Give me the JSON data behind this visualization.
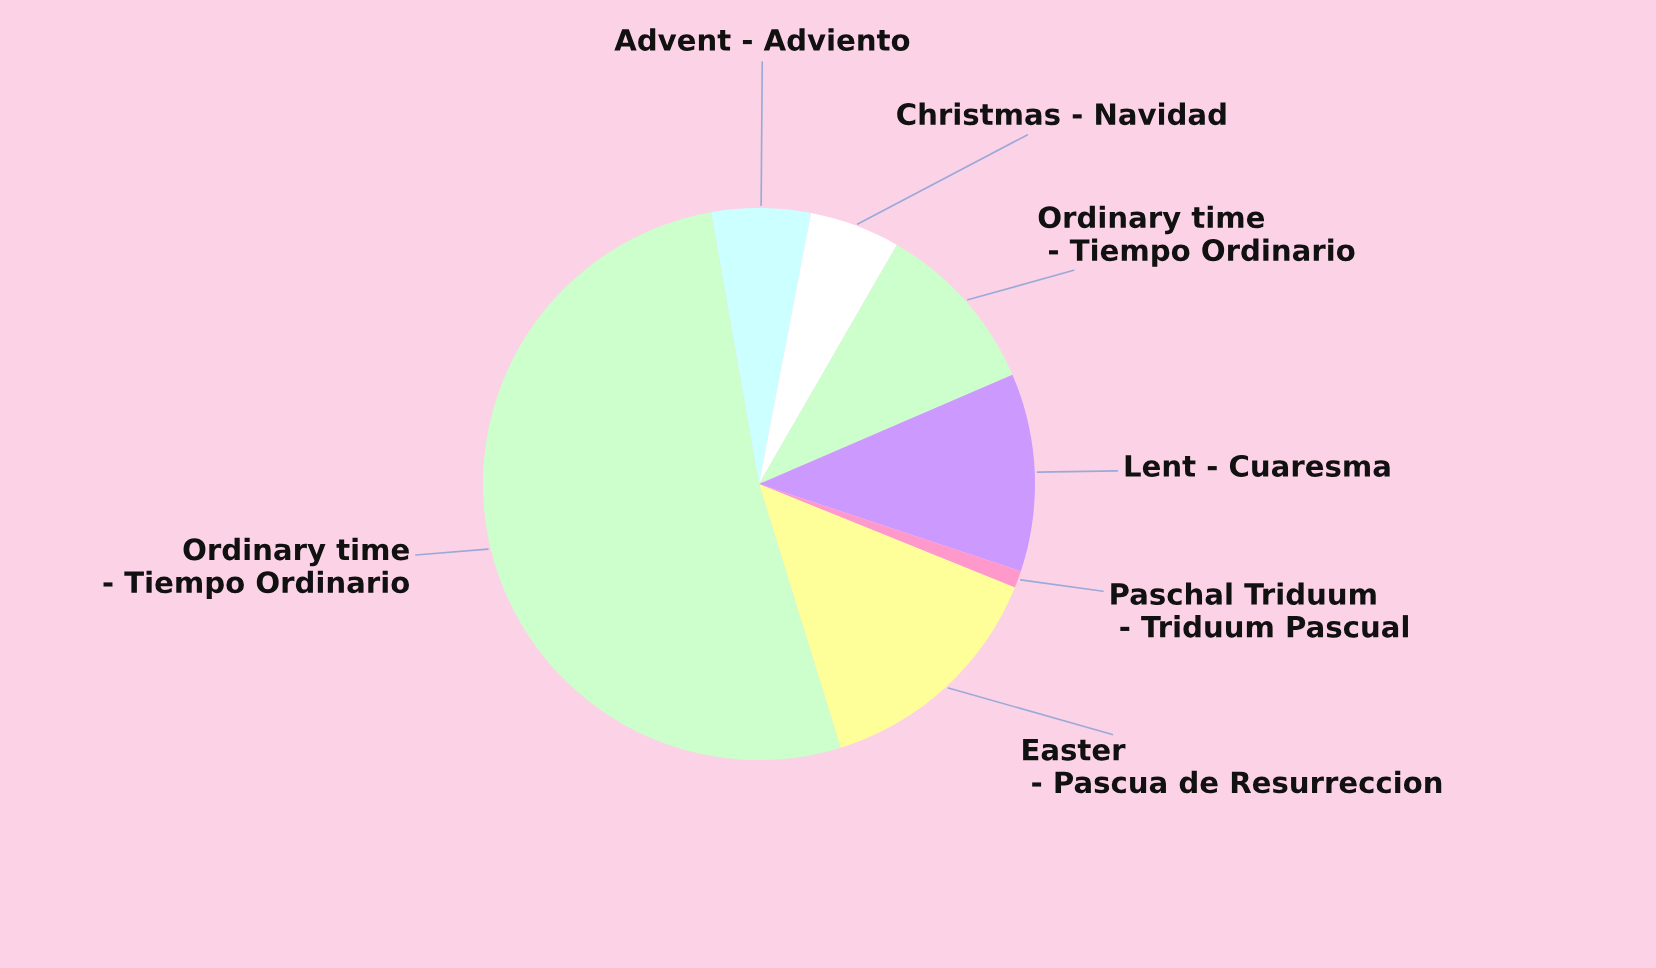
{
  "chart_data": {
    "type": "pie",
    "categories": [
      "Advent - Adviento",
      "Christmas - Navidad",
      "Ordinary time\n - Tiempo Ordinario",
      "Lent - Cuaresma",
      "Paschal Triduum\n - Triduum Pascual",
      "Easter\n - Pascua de Resurreccion",
      "Ordinary time\n - Tiempo Ordinario"
    ],
    "values": [
      5.8,
      5.3,
      10.2,
      11.6,
      1.0,
      14.1,
      52.0
    ],
    "colors": [
      "#ccffff",
      "#ffffff",
      "#ccffcc",
      "#cc99ff",
      "#ff99cc",
      "#ffff99",
      "#ccffcc"
    ]
  }
}
